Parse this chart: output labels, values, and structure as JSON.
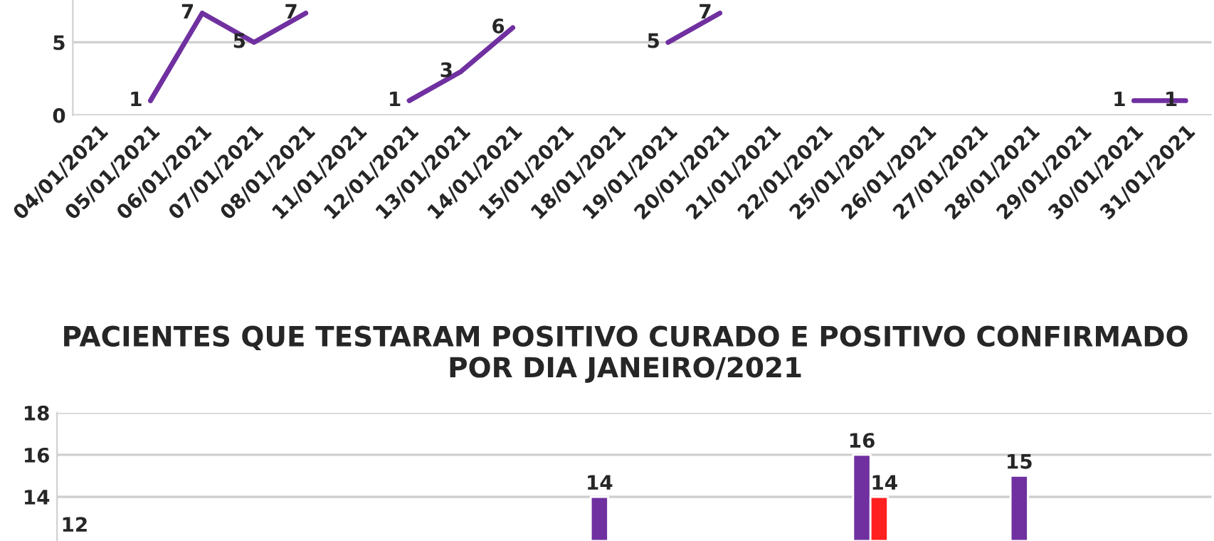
{
  "chart_data": [
    {
      "type": "line",
      "categories": [
        "04/01/2021",
        "05/01/2021",
        "06/01/2021",
        "07/01/2021",
        "08/01/2021",
        "11/01/2021",
        "12/01/2021",
        "13/01/2021",
        "14/01/2021",
        "15/01/2021",
        "18/01/2021",
        "19/01/2021",
        "20/01/2021",
        "21/01/2021",
        "22/01/2021",
        "25/01/2021",
        "26/01/2021",
        "27/01/2021",
        "28/01/2021",
        "29/01/2021",
        "30/01/2021",
        "31/01/2021"
      ],
      "series": [
        {
          "color": "#7030a0",
          "values": [
            null,
            1,
            7,
            5,
            7,
            null,
            1,
            3,
            6,
            null,
            null,
            5,
            7,
            null,
            null,
            null,
            null,
            null,
            null,
            null,
            1,
            1
          ]
        }
      ],
      "ylim": [
        0,
        7.9
      ],
      "yticks": [
        0,
        5
      ],
      "grid": "y",
      "data_labels": true,
      "line_style": "solid",
      "legend": false
    },
    {
      "type": "bar",
      "title": "PACIENTES QUE TESTARAM POSITIVO CURADO E POSITIVO CONFIRMADO POR DIA JANEIRO/2021",
      "categories": [
        null,
        null,
        null,
        null,
        null,
        null,
        null,
        null,
        null,
        null,
        null,
        null,
        null,
        null,
        null,
        null,
        null,
        null,
        null,
        null,
        null,
        null
      ],
      "series": [
        {
          "color": "#7030a0",
          "values": [
            12,
            null,
            null,
            null,
            null,
            null,
            null,
            null,
            null,
            null,
            14,
            null,
            null,
            null,
            null,
            16,
            null,
            null,
            15,
            null,
            null,
            null
          ]
        },
        {
          "color": "#ff2020",
          "values": [
            null,
            null,
            null,
            null,
            null,
            null,
            null,
            null,
            null,
            null,
            null,
            null,
            null,
            null,
            null,
            14,
            null,
            null,
            null,
            null,
            null,
            null
          ]
        }
      ],
      "ylim": [
        11.9,
        18
      ],
      "yticks": [
        14,
        16,
        18
      ],
      "grid": "y",
      "data_labels": true,
      "tick_labels": "y",
      "legend": false
    }
  ]
}
